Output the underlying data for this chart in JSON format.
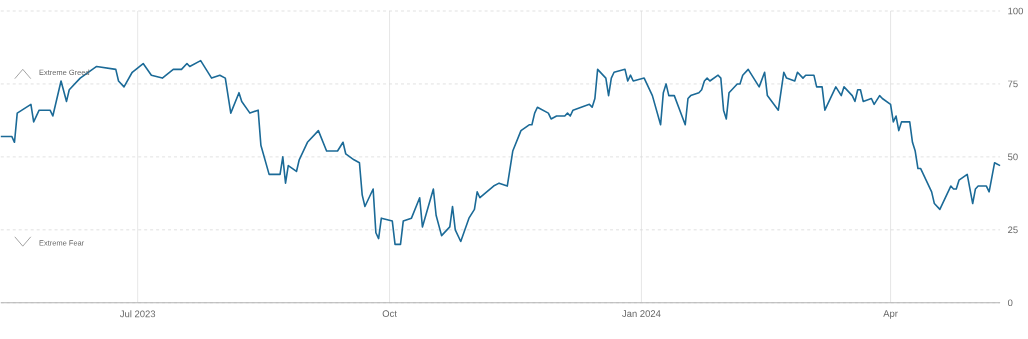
{
  "chart_data": {
    "type": "line",
    "x": [
      "2023-05-12",
      "2023-05-16",
      "2023-05-17",
      "2023-05-18",
      "2023-05-23",
      "2023-05-24",
      "2023-05-26",
      "2023-05-30",
      "2023-05-31",
      "2023-06-03",
      "2023-06-05",
      "2023-06-06",
      "2023-06-10",
      "2023-06-16",
      "2023-06-23",
      "2023-06-24",
      "2023-06-26",
      "2023-06-29",
      "2023-07-03",
      "2023-07-06",
      "2023-07-10",
      "2023-07-14",
      "2023-07-17",
      "2023-07-19",
      "2023-07-20",
      "2023-07-24",
      "2023-07-26",
      "2023-07-28",
      "2023-07-31",
      "2023-08-02",
      "2023-08-04",
      "2023-08-07",
      "2023-08-08",
      "2023-08-11",
      "2023-08-14",
      "2023-08-15",
      "2023-08-18",
      "2023-08-22",
      "2023-08-23",
      "2023-08-24",
      "2023-08-25",
      "2023-08-28",
      "2023-08-29",
      "2023-09-01",
      "2023-09-05",
      "2023-09-08",
      "2023-09-12",
      "2023-09-14",
      "2023-09-15",
      "2023-09-18",
      "2023-09-20",
      "2023-09-21",
      "2023-09-22",
      "2023-09-25",
      "2023-09-26",
      "2023-09-27",
      "2023-09-28",
      "2023-10-02",
      "2023-10-03",
      "2023-10-05",
      "2023-10-06",
      "2023-10-09",
      "2023-10-12",
      "2023-10-13",
      "2023-10-17",
      "2023-10-18",
      "2023-10-20",
      "2023-10-23",
      "2023-10-24",
      "2023-10-25",
      "2023-10-27",
      "2023-10-30",
      "2023-11-01",
      "2023-11-02",
      "2023-11-03",
      "2023-11-08",
      "2023-11-10",
      "2023-11-13",
      "2023-11-15",
      "2023-11-18",
      "2023-11-21",
      "2023-11-22",
      "2023-11-23",
      "2023-11-24",
      "2023-11-28",
      "2023-11-29",
      "2023-12-01",
      "2023-12-04",
      "2023-12-05",
      "2023-12-06",
      "2023-12-07",
      "2023-12-13",
      "2023-12-14",
      "2023-12-15",
      "2023-12-16",
      "2023-12-19",
      "2023-12-20",
      "2023-12-21",
      "2023-12-22",
      "2023-12-26",
      "2023-12-27",
      "2023-12-28",
      "2023-12-29",
      "2024-01-02",
      "2024-01-05",
      "2024-01-08",
      "2024-01-09",
      "2024-01-10",
      "2024-01-11",
      "2024-01-13",
      "2024-01-17",
      "2024-01-18",
      "2024-01-19",
      "2024-01-22",
      "2024-01-23",
      "2024-01-24",
      "2024-01-25",
      "2024-01-26",
      "2024-01-29",
      "2024-01-30",
      "2024-01-31",
      "2024-02-01",
      "2024-02-02",
      "2024-02-05",
      "2024-02-06",
      "2024-02-07",
      "2024-02-09",
      "2024-02-13",
      "2024-02-15",
      "2024-02-16",
      "2024-02-20",
      "2024-02-22",
      "2024-02-23",
      "2024-02-26",
      "2024-02-27",
      "2024-02-29",
      "2024-03-01",
      "2024-03-04",
      "2024-03-05",
      "2024-03-07",
      "2024-03-08",
      "2024-03-12",
      "2024-03-14",
      "2024-03-15",
      "2024-03-18",
      "2024-03-19",
      "2024-03-20",
      "2024-03-21",
      "2024-03-22",
      "2024-03-25",
      "2024-03-26",
      "2024-03-28",
      "2024-03-29",
      "2024-04-01",
      "2024-04-02",
      "2024-04-03",
      "2024-04-04",
      "2024-04-05",
      "2024-04-08",
      "2024-04-09",
      "2024-04-10",
      "2024-04-11",
      "2024-04-12",
      "2024-04-16",
      "2024-04-17",
      "2024-04-19",
      "2024-04-23",
      "2024-04-24",
      "2024-04-25",
      "2024-04-26",
      "2024-04-29",
      "2024-05-01",
      "2024-05-02",
      "2024-05-03",
      "2024-05-06",
      "2024-05-07",
      "2024-05-09",
      "2024-05-11"
    ],
    "values": [
      57,
      57,
      55,
      65,
      68,
      62,
      66,
      66,
      64,
      76,
      69,
      73,
      77,
      81,
      80,
      76,
      74,
      79,
      82,
      78,
      77,
      80,
      80,
      82,
      81,
      83,
      80,
      77,
      78,
      77,
      65,
      72,
      69,
      65,
      66,
      54,
      44,
      44,
      50,
      41,
      47,
      45,
      49,
      55,
      59,
      52,
      52,
      55,
      51,
      49,
      48,
      37,
      33,
      39,
      24,
      22,
      29,
      28,
      20,
      20,
      28,
      29,
      36,
      26,
      39,
      30,
      23,
      26,
      33,
      25,
      21,
      29,
      32,
      38,
      36,
      40,
      41,
      40,
      52,
      59,
      61,
      61,
      65,
      67,
      65,
      63,
      64,
      64,
      65,
      64,
      66,
      68,
      67,
      70,
      80,
      77,
      71,
      77,
      79,
      80,
      76,
      78,
      76,
      77,
      71,
      61,
      72,
      75,
      71,
      71,
      61,
      70,
      71,
      72,
      73,
      76,
      77,
      76,
      78,
      77,
      66,
      63,
      72,
      75,
      75,
      78,
      80,
      74,
      79,
      71,
      66,
      79,
      77,
      76,
      79,
      77,
      78,
      78,
      74,
      74,
      66,
      74,
      71,
      74,
      71,
      69,
      73,
      73,
      69,
      70,
      68,
      71,
      70,
      68,
      62,
      64,
      59,
      62,
      62,
      55,
      52,
      46,
      46,
      38,
      34,
      32,
      40,
      39,
      39,
      42,
      44,
      34,
      39,
      40,
      40,
      38,
      48,
      47
    ],
    "color": "#1b6a97",
    "xlim": [
      "2023-05-12",
      "2024-05-11"
    ],
    "xticks": [
      {
        "value": "2023-07-01",
        "label": "Jul 2023"
      },
      {
        "value": "2023-10-01",
        "label": "Oct"
      },
      {
        "value": "2024-01-01",
        "label": "Jan 2024"
      },
      {
        "value": "2024-04-01",
        "label": "Apr"
      }
    ],
    "ylim": [
      0,
      100
    ],
    "yticks": [
      0,
      25,
      50,
      75,
      100
    ],
    "grid": true,
    "annotations": [
      "Extreme Greed",
      "Extreme Fear"
    ]
  }
}
